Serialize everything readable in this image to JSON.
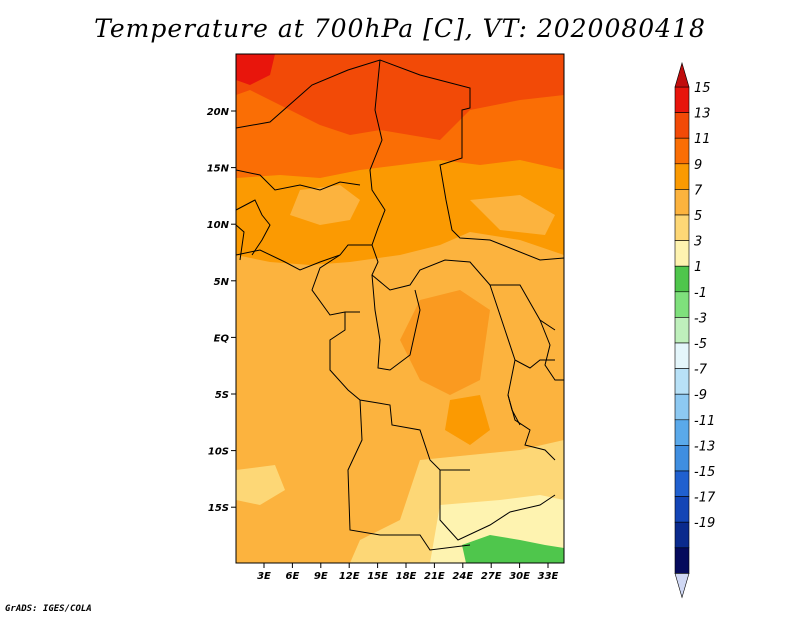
{
  "title": "Temperature at 700hPa [C], VT: 2020080418",
  "credit": "GrADS: IGES/COLA",
  "axes": {
    "lon_ticks": [
      "3E",
      "6E",
      "9E",
      "12E",
      "15E",
      "18E",
      "21E",
      "24E",
      "27E",
      "30E",
      "33E"
    ],
    "lat_ticks": [
      "20N",
      "15N",
      "10N",
      "5N",
      "EQ",
      "5S",
      "10S",
      "15S"
    ]
  },
  "colorbar": {
    "labels": [
      "15",
      "13",
      "11",
      "9",
      "7",
      "5",
      "3",
      "1",
      "-1",
      "-3",
      "-5",
      "-7",
      "-9",
      "-11",
      "-13",
      "-15",
      "-17",
      "-19"
    ],
    "colors": [
      "#e8150c",
      "#f24a07",
      "#fa6e05",
      "#fb9a02",
      "#fcb33e",
      "#fdd776",
      "#fef3b0",
      "#4fc64c",
      "#7fe07c",
      "#bff0bc",
      "#e4f6fb",
      "#b8e1f7",
      "#8dc9f2",
      "#5aa9ea",
      "#3f8ee0",
      "#2060cf",
      "#1345b6",
      "#0a2a8d",
      "#050a5c"
    ],
    "top_color": "#c00d0d",
    "bottom_color": "#d0d8f4"
  }
}
